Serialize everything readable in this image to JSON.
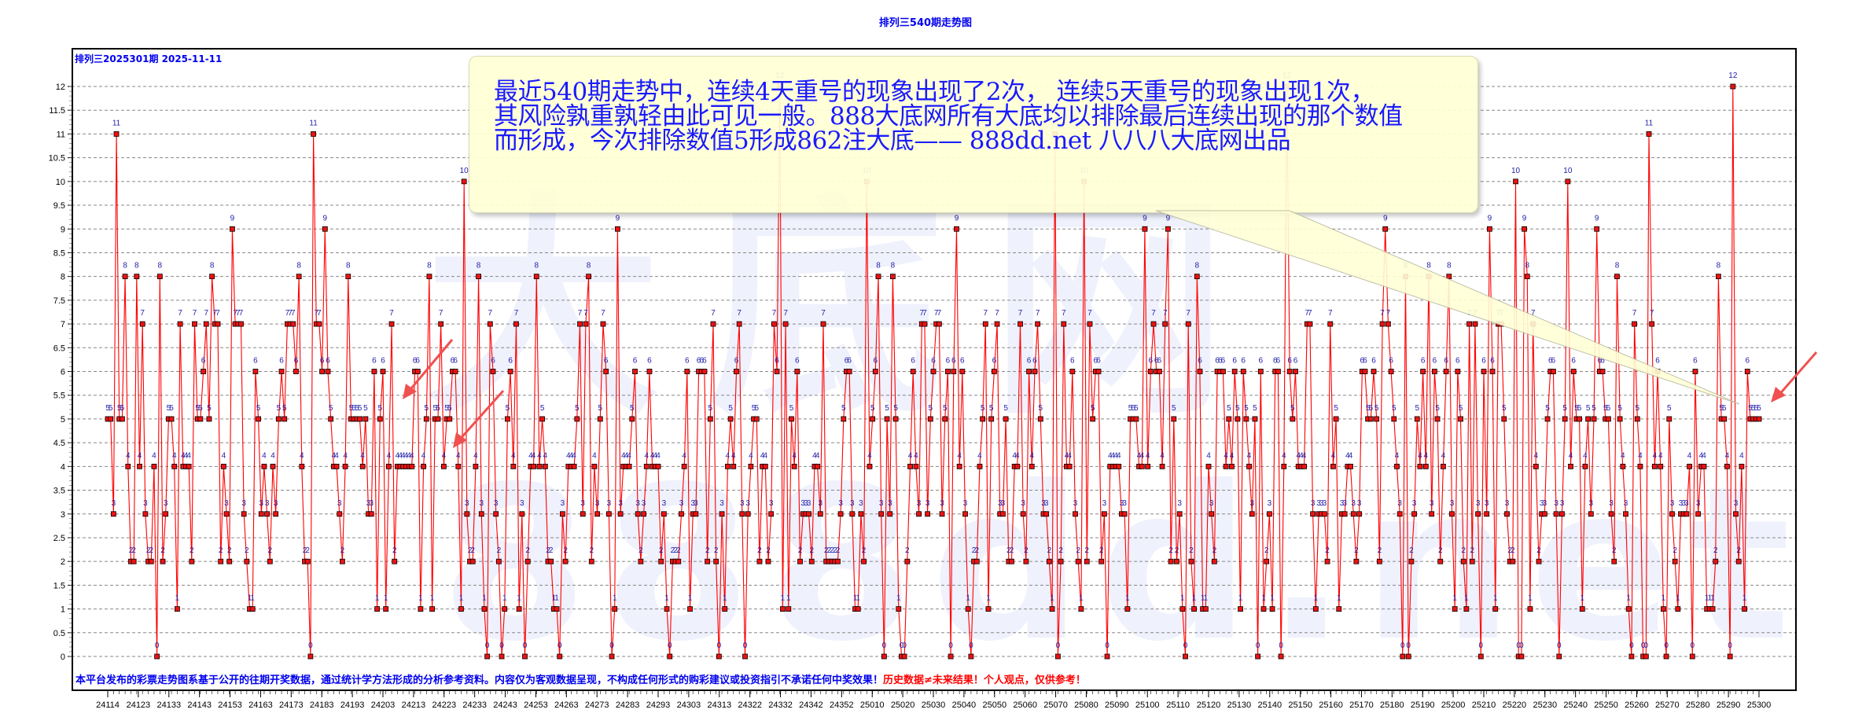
{
  "title": "排列三540期走势图",
  "subtitle": "排列三2025301期  2025-11-11",
  "callout": {
    "lines": [
      "最近540期走势中，连续4天重号的现象出现了2次， 连续5天重号的现象出现1次，",
      "其风险孰重孰轻由此可见一般。888大底网所有大底均以排除最后连续出现的那个数值",
      "而形成，今次排除数值5形成862注大底—— 888dd.net 八八八大底网出品"
    ],
    "bg_color": "#ffffd6",
    "text_color": "#1a1aff"
  },
  "footer": {
    "blue_text": "本平台发布的彩票走势图系基于公开的往期开奖数据，通过统计学方法形成的分析参考资料。内容仅为客观数据呈现，不构成任何形式的购彩建议或投资指引不承诺任何中奖效果！",
    "red_text": "历史数据≠未来结果！个人观点，仅供参考！"
  },
  "watermark": {
    "top": "大底网",
    "bottom": "888dd.net"
  },
  "colors": {
    "line": "#ff0000",
    "marker_fill": "#ee1111",
    "marker_stroke": "#000000",
    "label": "#2222aa",
    "grid": "#888888",
    "title": "#0000ee",
    "arrow": "#f05050"
  },
  "chart_data": {
    "type": "line",
    "title": "排列三540期走势图",
    "subtitle": "排列三2025301期 2025-11-11",
    "xlabel": "",
    "ylabel": "",
    "ylim": [
      0,
      12
    ],
    "yticks": [
      0,
      0.5,
      1,
      1.5,
      2,
      2.5,
      3,
      3.5,
      4,
      4.5,
      5,
      5.5,
      6,
      6.5,
      7,
      7.5,
      8,
      8.5,
      9,
      9.5,
      10,
      10.5,
      11,
      11.5,
      12
    ],
    "grid": true,
    "legend": "none",
    "x_tick_labels": [
      "24114",
      "24123",
      "24133",
      "24143",
      "24153",
      "24163",
      "24173",
      "24183",
      "24193",
      "24203",
      "24213",
      "24223",
      "24233",
      "24243",
      "24253",
      "24263",
      "24273",
      "24283",
      "24293",
      "24303",
      "24313",
      "24322",
      "24332",
      "24342",
      "24352",
      "25010",
      "25020",
      "25030",
      "25040",
      "25050",
      "25060",
      "25070",
      "25080",
      "25090",
      "25100",
      "25110",
      "25120",
      "25130",
      "25140",
      "25150",
      "25160",
      "25170",
      "25180",
      "25190",
      "25200",
      "25210",
      "25220",
      "25230",
      "25240",
      "25250",
      "25260",
      "25270",
      "25280",
      "25290",
      "25300"
    ],
    "series": [
      {
        "name": "排列三跨度/数值",
        "values": [
          5,
          5,
          3,
          11,
          5,
          5,
          8,
          4,
          2,
          2,
          8,
          4,
          7,
          3,
          2,
          2,
          4,
          0,
          8,
          2,
          3,
          5,
          5,
          4,
          1,
          7,
          4,
          4,
          4,
          2,
          7,
          5,
          5,
          6,
          7,
          5,
          8,
          7,
          7,
          2,
          4,
          3,
          2,
          9,
          7,
          7,
          7,
          3,
          2,
          1,
          1,
          6,
          5,
          3,
          4,
          3,
          2,
          4,
          3,
          5,
          6,
          5,
          7,
          7,
          7,
          6,
          8,
          4,
          2,
          2,
          0,
          11,
          7,
          7,
          6,
          9,
          6,
          5,
          4,
          4,
          3,
          2,
          4,
          8,
          5,
          5,
          5,
          5,
          4,
          5,
          3,
          3,
          6,
          1,
          5,
          6,
          1,
          4,
          7,
          2,
          4,
          4,
          4,
          4,
          4,
          4,
          6,
          6,
          1,
          4,
          5,
          8,
          1,
          5,
          5,
          7,
          4,
          5,
          5,
          6,
          6,
          4,
          1,
          10,
          3,
          2,
          2,
          4,
          8,
          3,
          1,
          0,
          7,
          6,
          3,
          2,
          0,
          1,
          5,
          6,
          4,
          7,
          1,
          3,
          0,
          2,
          4,
          4,
          8,
          4,
          5,
          4,
          2,
          2,
          1,
          1,
          0,
          3,
          2,
          4,
          4,
          4,
          5,
          7,
          3,
          7,
          8,
          2,
          4,
          3,
          5,
          7,
          6,
          3,
          0,
          1,
          9,
          3,
          4,
          4,
          4,
          5,
          6,
          3,
          2,
          3,
          4,
          6,
          4,
          4,
          4,
          2,
          3,
          1,
          0,
          2,
          2,
          2,
          3,
          4,
          6,
          1,
          3,
          3,
          6,
          6,
          6,
          2,
          5,
          7,
          2,
          0,
          3,
          1,
          4,
          5,
          4,
          6,
          7,
          3,
          0,
          3,
          4,
          5,
          5,
          2,
          4,
          4,
          2,
          3,
          7,
          6,
          12,
          1,
          7,
          1,
          5,
          4,
          6,
          2,
          3,
          3,
          3,
          2,
          4,
          4,
          3,
          7,
          2,
          2,
          2,
          2,
          2,
          3,
          5,
          6,
          6,
          3,
          1,
          1,
          3,
          2,
          10,
          4,
          5,
          6,
          8,
          3,
          0,
          5,
          3,
          8,
          5,
          1,
          0,
          0,
          2,
          4,
          6,
          4,
          3,
          7,
          7,
          3,
          5,
          6,
          7,
          7,
          3,
          5,
          6,
          0,
          6,
          9,
          4,
          6,
          3,
          1,
          0,
          2,
          2,
          4,
          5,
          7,
          1,
          5,
          6,
          7,
          3,
          3,
          5,
          2,
          2,
          4,
          4,
          7,
          3,
          2,
          6,
          4,
          6,
          7,
          5,
          3,
          3,
          2,
          1,
          11,
          0,
          2,
          7,
          4,
          4,
          6,
          3,
          2,
          1,
          10,
          2,
          7,
          5,
          6,
          6,
          2,
          3,
          0,
          4,
          4,
          4,
          4,
          3,
          3,
          1,
          5,
          5,
          5,
          4,
          4,
          9,
          4,
          6,
          7,
          6,
          6,
          4,
          7,
          9,
          2,
          5,
          2,
          3,
          1,
          0,
          7,
          2,
          1,
          8,
          6,
          1,
          1,
          4,
          3,
          2,
          6,
          6,
          6,
          4,
          5,
          4,
          6,
          5,
          1,
          6,
          5,
          4,
          3,
          5,
          0,
          6,
          1,
          2,
          3,
          1,
          6,
          6,
          0,
          4,
          12,
          6,
          5,
          6,
          4,
          4,
          4,
          7,
          7,
          3,
          1,
          3,
          3,
          3,
          2,
          7,
          4,
          5,
          1,
          3,
          3,
          4,
          4,
          3,
          2,
          3,
          6,
          6,
          5,
          5,
          6,
          5,
          2,
          7,
          9,
          7,
          6,
          5,
          4,
          3,
          0,
          8,
          0,
          2,
          3,
          5,
          4,
          6,
          4,
          8,
          3,
          6,
          5,
          2,
          4,
          6,
          8,
          3,
          1,
          6,
          5,
          2,
          1,
          7,
          2,
          7,
          3,
          0,
          6,
          3,
          9,
          6,
          1,
          7,
          7,
          5,
          3,
          2,
          2,
          10,
          0,
          0,
          9,
          8,
          1,
          7,
          4,
          2,
          3,
          3,
          5,
          6,
          6,
          3,
          0,
          3,
          5,
          10,
          4,
          6,
          5,
          5,
          1,
          4,
          5,
          3,
          5,
          9,
          6,
          6,
          5,
          5,
          3,
          2,
          8,
          5,
          4,
          3,
          1,
          0,
          7,
          5,
          4,
          0,
          0,
          11,
          7,
          4,
          6,
          4,
          1,
          0,
          5,
          3,
          2,
          1,
          3,
          3,
          3,
          4,
          0,
          6,
          3,
          4,
          4,
          1,
          1,
          1,
          2,
          8,
          5,
          5,
          4,
          0,
          12,
          3,
          2,
          4,
          1,
          6,
          5,
          5,
          5,
          5
        ]
      }
    ]
  }
}
